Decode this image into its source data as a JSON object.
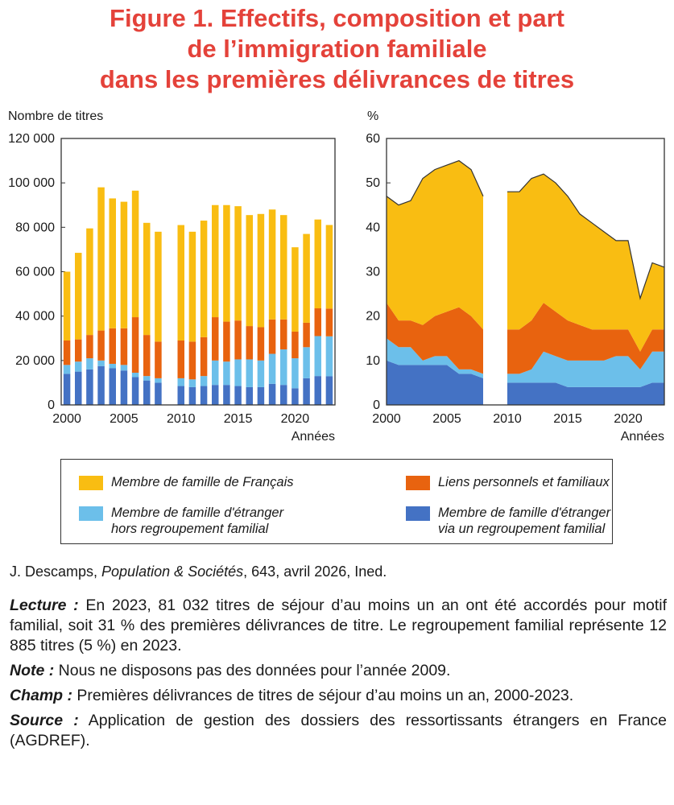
{
  "title": {
    "line1": "Figure 1. Effectifs, composition et part",
    "line2": "de l’immigration familiale",
    "line3": "dans les premières délivrances de titres"
  },
  "colors": {
    "francais": "#f9bd12",
    "liens": "#e8630f",
    "hors_regroupement": "#6cbfea",
    "regroupement": "#4472c4",
    "title": "#e4423a"
  },
  "chart_data": [
    {
      "type": "bar",
      "stacked": true,
      "ylabel": "Nombre de titres",
      "xlabel": "Années",
      "ylim": [
        0,
        120000
      ],
      "yticks": [
        "0",
        "20 000",
        "40 000",
        "60 000",
        "80 000",
        "100 000",
        "120 000"
      ],
      "xticks": [
        "2000",
        "2005",
        "2010",
        "2015",
        "2020"
      ],
      "missing_years": [
        2009
      ],
      "categories": [
        2000,
        2001,
        2002,
        2003,
        2004,
        2005,
        2006,
        2007,
        2008,
        2010,
        2011,
        2012,
        2013,
        2014,
        2015,
        2016,
        2017,
        2018,
        2019,
        2020,
        2021,
        2022,
        2023
      ],
      "series": [
        {
          "name": "Membre de famille d'étranger via un regroupement familial",
          "color_key": "regroupement",
          "values": [
            14000,
            15000,
            16000,
            17500,
            16500,
            15500,
            12500,
            11000,
            10000,
            8500,
            8000,
            8500,
            9000,
            9000,
            8500,
            8000,
            8000,
            9500,
            9000,
            7500,
            12000,
            13000,
            12885
          ]
        },
        {
          "name": "Membre de famille d'étranger hors regroupement familial",
          "color_key": "hors_regroupement",
          "values": [
            4000,
            4500,
            5000,
            2500,
            2000,
            2500,
            2000,
            2000,
            2000,
            3500,
            3500,
            4500,
            11000,
            10500,
            12000,
            12500,
            12000,
            13500,
            16000,
            13500,
            14000,
            18000,
            18000
          ]
        },
        {
          "name": "Liens personnels et familiaux",
          "color_key": "liens",
          "values": [
            11000,
            10000,
            10500,
            13500,
            16000,
            16500,
            25000,
            18500,
            16500,
            17000,
            17000,
            17500,
            19500,
            18000,
            17500,
            15000,
            15000,
            15500,
            13500,
            12000,
            11000,
            12500,
            12500
          ]
        },
        {
          "name": "Membre de famille de Français",
          "color_key": "francais",
          "values": [
            31000,
            39000,
            48000,
            64500,
            58500,
            57000,
            57000,
            50500,
            49500,
            52000,
            49500,
            52500,
            50500,
            52500,
            51500,
            50000,
            51000,
            49500,
            47000,
            38000,
            40000,
            40000,
            37647
          ]
        }
      ]
    },
    {
      "type": "area",
      "stacked": true,
      "ylabel": "%",
      "xlabel": "Années",
      "ylim": [
        0,
        60
      ],
      "yticks": [
        "0",
        "10",
        "20",
        "30",
        "40",
        "50",
        "60"
      ],
      "xticks": [
        "2000",
        "2005",
        "2010",
        "2015",
        "2020"
      ],
      "missing_years": [
        2009
      ],
      "segments": [
        {
          "x": [
            2000,
            2001,
            2002,
            2003,
            2004,
            2005,
            2006,
            2007,
            2008
          ],
          "series": [
            {
              "name": "Membre de famille d'étranger via un regroupement familial",
              "color_key": "regroupement",
              "values": [
                10,
                9,
                9,
                9,
                9,
                9,
                7,
                7,
                6
              ]
            },
            {
              "name": "Membre de famille d'étranger hors regroupement familial",
              "color_key": "hors_regroupement",
              "values": [
                5,
                4,
                4,
                1,
                2,
                2,
                1,
                1,
                1
              ]
            },
            {
              "name": "Liens personnels et familiaux",
              "color_key": "liens",
              "values": [
                8,
                6,
                6,
                8,
                9,
                10,
                14,
                12,
                10
              ]
            },
            {
              "name": "Membre de famille de Français",
              "color_key": "francais",
              "values": [
                24,
                26,
                27,
                33,
                33,
                33,
                33,
                33,
                30
              ]
            }
          ]
        },
        {
          "x": [
            2010,
            2011,
            2012,
            2013,
            2014,
            2015,
            2016,
            2017,
            2018,
            2019,
            2020,
            2021,
            2022,
            2023
          ],
          "series": [
            {
              "name": "Membre de famille d'étranger via un regroupement familial",
              "color_key": "regroupement",
              "values": [
                5,
                5,
                5,
                5,
                5,
                4,
                4,
                4,
                4,
                4,
                4,
                4,
                5,
                5
              ]
            },
            {
              "name": "Membre de famille d'étranger hors regroupement familial",
              "color_key": "hors_regroupement",
              "values": [
                2,
                2,
                3,
                7,
                6,
                6,
                6,
                6,
                6,
                7,
                7,
                4,
                7,
                7
              ]
            },
            {
              "name": "Liens personnels et familiaux",
              "color_key": "liens",
              "values": [
                10,
                10,
                11,
                11,
                10,
                9,
                8,
                7,
                7,
                6,
                6,
                4,
                5,
                5
              ]
            },
            {
              "name": "Membre de famille de Français",
              "color_key": "francais",
              "values": [
                31,
                31,
                32,
                29,
                29,
                28,
                25,
                24,
                22,
                20,
                20,
                12,
                15,
                14
              ]
            }
          ]
        }
      ]
    }
  ],
  "legend": {
    "francais": "Membre de famille de Français",
    "liens": "Liens personnels et familiaux",
    "hors_line1": "Membre de famille d'étranger",
    "hors_line2": "hors regroupement familial",
    "regroup_line1": "Membre de famille d'étranger",
    "regroup_line2": "via un regroupement familial"
  },
  "source_line": {
    "author": "J. Descamps, ",
    "journal": "Population & Sociétés",
    "rest": ", 643, avril 2026, Ined."
  },
  "notes": {
    "lecture_label": "Lecture :",
    "lecture_text": " En 2023, 81 032 titres de séjour d’au moins un an ont été accordés pour motif familial, soit 31 % des premières délivrances de titre. Le regroupement familial représente 12 885 titres (5 %) en 2023.",
    "note_label": "Note :",
    "note_text": " Nous ne disposons pas des données pour l’année 2009.",
    "champ_label": "Champ :",
    "champ_text": " Premières délivrances de titres de séjour d’au moins un an, 2000-2023.",
    "source_label": "Source :",
    "source_text": " Application de gestion des dossiers des ressortissants étrangers en France (AGDREF)."
  }
}
